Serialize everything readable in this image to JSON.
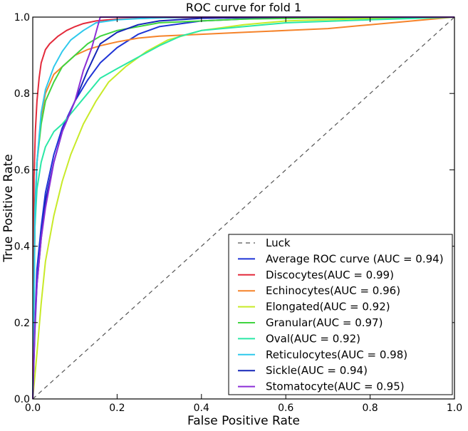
{
  "chart_data": {
    "type": "line",
    "title": "ROC curve for fold 1",
    "xlabel": "False Positive Rate",
    "ylabel": "True Positive Rate",
    "xlim": [
      0.0,
      1.0
    ],
    "ylim": [
      0.0,
      1.0
    ],
    "grid": false,
    "legend_position": "bottom-right",
    "x_ticks": [
      {
        "value": 0.0,
        "label": "0.0"
      },
      {
        "value": 0.2,
        "label": "0.2"
      },
      {
        "value": 0.4,
        "label": "0.4"
      },
      {
        "value": 0.6,
        "label": "0.6"
      },
      {
        "value": 0.8,
        "label": "0.8"
      },
      {
        "value": 1.0,
        "label": "1.0"
      }
    ],
    "y_ticks": [
      {
        "value": 0.0,
        "label": "0.0"
      },
      {
        "value": 0.2,
        "label": "0.2"
      },
      {
        "value": 0.4,
        "label": "0.4"
      },
      {
        "value": 0.6,
        "label": "0.6"
      },
      {
        "value": 0.8,
        "label": "0.8"
      },
      {
        "value": 1.0,
        "label": "1.0"
      }
    ],
    "series": [
      {
        "name": "Luck",
        "label": "Luck",
        "color": "#555555",
        "dashed": true,
        "x": [
          0,
          1
        ],
        "y": [
          0,
          1
        ]
      },
      {
        "name": "Average ROC curve",
        "label": "Average ROC curve (AUC = 0.94)",
        "color": "#1f34d6",
        "dashed": false,
        "x": [
          0,
          0.005,
          0.01,
          0.02,
          0.03,
          0.05,
          0.07,
          0.1,
          0.13,
          0.16,
          0.2,
          0.25,
          0.3,
          0.4,
          0.5,
          0.6,
          0.8,
          1.0
        ],
        "y": [
          0,
          0.2,
          0.34,
          0.45,
          0.54,
          0.64,
          0.71,
          0.78,
          0.835,
          0.88,
          0.92,
          0.955,
          0.975,
          0.99,
          0.995,
          0.998,
          1.0,
          1.0
        ]
      },
      {
        "name": "Discocytes",
        "label": "Discocytes(AUC = 0.99)",
        "color": "#e32a3b",
        "dashed": false,
        "x": [
          0,
          0.003,
          0.006,
          0.01,
          0.015,
          0.02,
          0.03,
          0.04,
          0.06,
          0.08,
          0.1,
          0.12,
          0.15,
          0.2,
          0.3,
          0.5,
          1.0
        ],
        "y": [
          0,
          0.58,
          0.7,
          0.78,
          0.84,
          0.88,
          0.915,
          0.93,
          0.95,
          0.965,
          0.975,
          0.983,
          0.99,
          0.995,
          0.998,
          1.0,
          1.0
        ]
      },
      {
        "name": "Echinocytes",
        "label": "Echinocytes(AUC = 0.96)",
        "color": "#f5832a",
        "dashed": false,
        "x": [
          0,
          0.005,
          0.01,
          0.02,
          0.03,
          0.05,
          0.08,
          0.1,
          0.13,
          0.16,
          0.2,
          0.25,
          0.3,
          0.4,
          0.5,
          0.6,
          0.7,
          0.8,
          0.9,
          1.0
        ],
        "y": [
          0,
          0.45,
          0.62,
          0.74,
          0.8,
          0.85,
          0.88,
          0.9,
          0.915,
          0.925,
          0.935,
          0.945,
          0.95,
          0.955,
          0.96,
          0.965,
          0.97,
          0.98,
          0.99,
          1.0
        ]
      },
      {
        "name": "Elongated",
        "label": "Elongated(AUC = 0.92)",
        "color": "#c8ea28",
        "dashed": false,
        "x": [
          0,
          0.01,
          0.02,
          0.03,
          0.05,
          0.07,
          0.09,
          0.12,
          0.15,
          0.18,
          0.22,
          0.27,
          0.32,
          0.4,
          0.5,
          0.6,
          0.75,
          0.9,
          1.0
        ],
        "y": [
          0,
          0.12,
          0.25,
          0.36,
          0.48,
          0.57,
          0.64,
          0.72,
          0.78,
          0.83,
          0.87,
          0.91,
          0.94,
          0.965,
          0.98,
          0.99,
          0.995,
          0.998,
          1.0
        ]
      },
      {
        "name": "Granular",
        "label": "Granular(AUC = 0.97)",
        "color": "#3fd43f",
        "dashed": false,
        "x": [
          0,
          0.005,
          0.01,
          0.02,
          0.03,
          0.05,
          0.07,
          0.1,
          0.13,
          0.16,
          0.2,
          0.25,
          0.3,
          0.4,
          0.5,
          0.7,
          1.0
        ],
        "y": [
          0,
          0.5,
          0.62,
          0.72,
          0.78,
          0.83,
          0.87,
          0.9,
          0.93,
          0.95,
          0.965,
          0.975,
          0.985,
          0.99,
          0.995,
          0.998,
          1.0
        ]
      },
      {
        "name": "Oval",
        "label": "Oval(AUC = 0.92)",
        "color": "#2ae8a6",
        "dashed": false,
        "x": [
          0,
          0.005,
          0.01,
          0.02,
          0.03,
          0.05,
          0.07,
          0.1,
          0.13,
          0.16,
          0.2,
          0.25,
          0.3,
          0.35,
          0.4,
          0.5,
          0.6,
          0.8,
          1.0
        ],
        "y": [
          0,
          0.45,
          0.55,
          0.62,
          0.66,
          0.7,
          0.72,
          0.76,
          0.8,
          0.84,
          0.865,
          0.895,
          0.925,
          0.95,
          0.965,
          0.975,
          0.985,
          0.993,
          1.0
        ]
      },
      {
        "name": "Reticulocytes",
        "label": "Reticulocytes(AUC = 0.98)",
        "color": "#2ec9ec",
        "dashed": false,
        "x": [
          0,
          0.005,
          0.01,
          0.02,
          0.03,
          0.05,
          0.07,
          0.09,
          0.12,
          0.15,
          0.2,
          0.25,
          0.3,
          0.4,
          0.6,
          1.0
        ],
        "y": [
          0,
          0.48,
          0.62,
          0.75,
          0.81,
          0.87,
          0.91,
          0.94,
          0.965,
          0.985,
          0.993,
          0.996,
          0.998,
          1.0,
          1.0,
          1.0
        ]
      },
      {
        "name": "Sickle",
        "label": "Sickle(AUC = 0.94)",
        "color": "#1526b8",
        "dashed": false,
        "x": [
          0,
          0.005,
          0.01,
          0.02,
          0.03,
          0.05,
          0.07,
          0.1,
          0.13,
          0.16,
          0.2,
          0.25,
          0.3,
          0.4,
          0.6,
          1.0
        ],
        "y": [
          0,
          0.18,
          0.3,
          0.42,
          0.52,
          0.62,
          0.7,
          0.78,
          0.86,
          0.93,
          0.96,
          0.98,
          0.99,
          0.997,
          1.0,
          1.0
        ]
      },
      {
        "name": "Stomatocyte",
        "label": "Stomatocyte(AUC = 0.95)",
        "color": "#8c2fd6",
        "dashed": false,
        "x": [
          0,
          0.005,
          0.01,
          0.02,
          0.03,
          0.05,
          0.07,
          0.1,
          0.12,
          0.14,
          0.16,
          0.2,
          0.3,
          0.5,
          1.0
        ],
        "y": [
          0,
          0.2,
          0.3,
          0.42,
          0.5,
          0.62,
          0.7,
          0.78,
          0.86,
          0.92,
          1.0,
          1.0,
          1.0,
          1.0,
          1.0
        ]
      }
    ]
  }
}
